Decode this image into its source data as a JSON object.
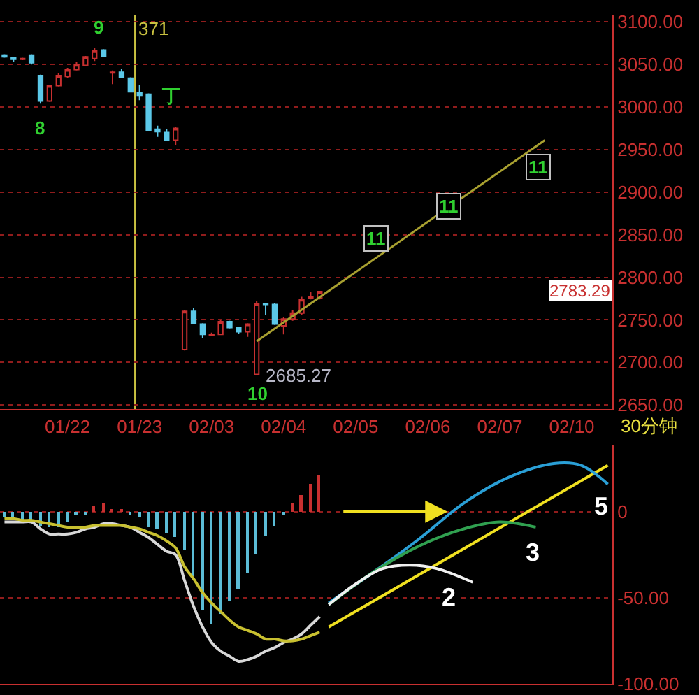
{
  "chart_data": [
    {
      "type": "candlestick",
      "categories": [
        null,
        null,
        null,
        null,
        null,
        null,
        null,
        "01/22",
        null,
        null,
        null,
        null,
        null,
        null,
        null,
        "01/23",
        null,
        null,
        null,
        null,
        null,
        null,
        null,
        "02/03",
        null,
        null,
        null,
        null,
        null,
        null,
        null,
        "02/04",
        null,
        null,
        null,
        null,
        null,
        null,
        null,
        "02/05",
        null,
        null,
        null,
        null,
        null,
        null,
        null,
        "02/06",
        null,
        null,
        null,
        null,
        null,
        null,
        null,
        "02/07",
        null,
        null,
        null,
        null,
        null,
        null,
        null,
        "02/10",
        null,
        null,
        null,
        null
      ],
      "ohlc": [
        [
          3061,
          3062,
          3058,
          3059
        ],
        [
          3058,
          3058,
          3053,
          3056
        ],
        [
          3056,
          3058,
          3055,
          3057
        ],
        [
          3061,
          3062,
          3050,
          3052
        ],
        [
          3037,
          3038,
          3004,
          3007
        ],
        [
          3007,
          3026,
          3006,
          3025
        ],
        [
          3025,
          3040,
          3024,
          3037
        ],
        [
          3036,
          3046,
          3034,
          3044
        ],
        [
          3044,
          3053,
          3043,
          3050
        ],
        [
          3049,
          3060,
          3048,
          3059
        ],
        [
          3057,
          3069,
          3054,
          3066
        ],
        [
          3067,
          3068,
          3059,
          3060
        ],
        [
          3040,
          3043,
          3027,
          3041
        ],
        [
          3041,
          3045,
          3034,
          3035
        ],
        [
          3034,
          3035,
          3017,
          3018
        ],
        [
          3017,
          3026,
          3008,
          3013
        ],
        [
          3015,
          3016,
          2972,
          2973
        ],
        [
          2974,
          2978,
          2965,
          2971
        ],
        [
          2970,
          2974,
          2960,
          2961
        ],
        [
          2961,
          2977,
          2955,
          2975
        ],
        [
          2715,
          2761,
          2714,
          2760
        ],
        [
          2760,
          2764,
          2745,
          2746
        ],
        [
          2745,
          2746,
          2729,
          2733
        ],
        [
          2732,
          2735,
          2731,
          2733
        ],
        [
          2733,
          2750,
          2732,
          2748
        ],
        [
          2748,
          2749,
          2740,
          2741
        ],
        [
          2741,
          2742,
          2734,
          2736
        ],
        [
          2736,
          2746,
          2730,
          2745
        ],
        [
          2686,
          2772,
          2685.27,
          2769
        ],
        [
          2769,
          2770,
          2756,
          2768
        ],
        [
          2768,
          2770,
          2744,
          2745
        ],
        [
          2743,
          2753,
          2733,
          2751
        ],
        [
          2751,
          2761,
          2749,
          2758
        ],
        [
          2758,
          2777,
          2756,
          2774
        ],
        [
          2775,
          2783,
          2774,
          2777
        ],
        [
          2775,
          2784,
          2774,
          2783.29
        ],
        null,
        null,
        null,
        null,
        null,
        null,
        null,
        null,
        null,
        null,
        null,
        null,
        null,
        null,
        null,
        null,
        null,
        null,
        null,
        null,
        null,
        null,
        null,
        null,
        null,
        null,
        null,
        null,
        null,
        null,
        null,
        null
      ],
      "series": [
        {
          "type": "line",
          "color": "#a8a030",
          "values": [
            null,
            null,
            null,
            null,
            null,
            null,
            null,
            null,
            null,
            null,
            null,
            null,
            null,
            null,
            null,
            null,
            null,
            null,
            null,
            null,
            null,
            null,
            null,
            null,
            null,
            null,
            null,
            null,
            2725,
            null,
            null,
            null,
            null,
            null,
            null,
            null,
            null,
            null,
            null,
            null,
            null,
            null,
            null,
            null,
            null,
            null,
            null,
            null,
            null,
            null,
            null,
            null,
            null,
            null,
            null,
            null,
            null,
            null,
            null,
            null,
            2961,
            null,
            null,
            null,
            null,
            null,
            null,
            null
          ]
        }
      ],
      "ylim": [
        2645,
        3108
      ],
      "yticks": [
        {
          "value": 2650,
          "label": "2650.00"
        },
        {
          "value": 2700,
          "label": "2700.00"
        },
        {
          "value": 2750,
          "label": "2750.00"
        },
        {
          "value": 2800,
          "label": "2800.00"
        },
        {
          "value": 2850,
          "label": "2850.00"
        },
        {
          "value": 2900,
          "label": "2900.00"
        },
        {
          "value": 2950,
          "label": "2950.00"
        },
        {
          "value": 3000,
          "label": "3000.00"
        },
        {
          "value": 3050,
          "label": "3050.00"
        },
        {
          "value": 3100,
          "label": "3100.00"
        }
      ],
      "grid": "y",
      "annotations": [
        "8",
        "9",
        "丁",
        "10",
        "2685.27",
        "11",
        "11",
        "11",
        "2783.29",
        "30分钟",
        "371"
      ]
    },
    {
      "type": "bar",
      "categories": [
        null,
        null,
        null,
        null,
        null,
        null,
        null,
        null,
        null,
        null,
        null,
        null,
        null,
        null,
        null,
        null,
        null,
        null,
        null,
        null,
        null,
        null,
        null,
        null,
        null,
        null,
        null,
        null,
        null,
        null,
        null,
        null,
        null,
        null,
        null,
        null,
        null,
        null,
        null,
        null,
        null,
        null,
        null,
        null,
        null,
        null,
        null,
        null,
        null,
        null,
        null,
        null,
        null,
        null,
        null,
        null,
        null,
        null,
        null,
        null,
        null,
        null,
        null,
        null,
        null,
        null,
        null,
        null
      ],
      "ylim": [
        -100,
        39
      ],
      "yticks": [
        0,
        {
          "value": -50,
          "label": "-50.00"
        },
        {
          "value": -100,
          "label": "-100.00"
        }
      ],
      "tick_labels": "y",
      "grid": "y",
      "series": [
        {
          "type": "bar",
          "values": [
            -3,
            -4,
            -6,
            -6,
            -8,
            -9,
            -9,
            -6,
            -2,
            -1,
            3,
            5,
            2,
            1,
            -1,
            -3,
            -9,
            -10,
            -12,
            -15,
            -22,
            -37,
            -57,
            -65,
            -59,
            -52,
            -45,
            -36,
            -24,
            -14,
            -8,
            -2,
            5,
            10,
            16,
            21,
            null,
            null,
            null,
            null,
            null,
            null,
            null,
            null,
            null,
            null,
            null,
            null,
            null,
            null,
            null,
            null,
            null,
            null,
            null,
            null,
            null,
            null,
            null,
            null,
            null,
            null,
            null,
            null,
            null,
            null,
            null,
            null
          ],
          "colors": [
            "#5bbcd6",
            "#5bbcd6",
            "#5bbcd6",
            "#5bbcd6",
            "#5bbcd6",
            "#5bbcd6",
            "#5bbcd6",
            "#5bbcd6",
            "#5bbcd6",
            "#5bbcd6",
            "#c83030",
            "#c83030",
            "#c83030",
            "#c83030",
            "#5bbcd6",
            "#5bbcd6",
            "#5bbcd6",
            "#5bbcd6",
            "#5bbcd6",
            "#5bbcd6",
            "#5bbcd6",
            "#5bbcd6",
            "#5bbcd6",
            "#5bbcd6",
            "#5bbcd6",
            "#5bbcd6",
            "#5bbcd6",
            "#5bbcd6",
            "#5bbcd6",
            "#5bbcd6",
            "#5bbcd6",
            "#5bbcd6",
            "#c83030",
            "#c83030",
            "#c83030",
            "#c83030",
            null,
            null,
            null,
            null,
            null,
            null,
            null,
            null,
            null,
            null,
            null,
            null,
            null,
            null,
            null,
            null,
            null,
            null,
            null,
            null,
            null,
            null,
            null,
            null,
            null,
            null,
            null,
            null,
            null,
            null,
            null,
            null
          ]
        },
        {
          "type": "line",
          "color": "#d8d8d8",
          "values": [
            -6,
            -6,
            -6,
            -6,
            -10,
            -13,
            -13,
            -13,
            -12,
            -10,
            -9,
            -7,
            -7,
            -8,
            -9,
            -12,
            -15,
            -19,
            -23,
            -25,
            -40,
            -55,
            -67,
            -76,
            -81,
            -84,
            -87,
            -86,
            -84,
            -81,
            -79,
            -76,
            -74,
            -71,
            -66,
            -61,
            null,
            null,
            null,
            null,
            null,
            null,
            null,
            null,
            null,
            null,
            null,
            null,
            null,
            null,
            null,
            null,
            null,
            null,
            null,
            null,
            null,
            null,
            null,
            null,
            null,
            null,
            null,
            null,
            null,
            null,
            null,
            null
          ]
        },
        {
          "type": "line",
          "color": "#c8c030",
          "values": [
            -4,
            -4,
            -5,
            -5,
            -6,
            -7,
            -8,
            -9,
            -9,
            -9,
            -8,
            -8,
            -8,
            -8,
            -9,
            -10,
            -12,
            -14,
            -17,
            -21,
            -32,
            -39,
            -47,
            -53,
            -58,
            -63,
            -67,
            -69,
            -71,
            -74,
            -74,
            -75,
            -75,
            -74,
            -72,
            -70,
            null,
            null,
            null,
            null,
            null,
            null,
            null,
            null,
            null,
            null,
            null,
            null,
            null,
            null,
            null,
            null,
            null,
            null,
            null,
            null,
            null,
            null,
            null,
            null,
            null,
            null,
            null,
            null,
            null,
            null,
            null,
            null
          ]
        },
        {
          "type": "line",
          "color": "#f0e020",
          "values": [
            null,
            null,
            null,
            null,
            null,
            null,
            null,
            null,
            null,
            null,
            null,
            null,
            null,
            null,
            null,
            null,
            null,
            null,
            null,
            null,
            null,
            null,
            null,
            null,
            null,
            null,
            null,
            null,
            null,
            null,
            null,
            null,
            null,
            null,
            null,
            null,
            -67,
            null,
            null,
            null,
            null,
            null,
            null,
            null,
            null,
            null,
            null,
            null,
            null,
            null,
            null,
            null,
            null,
            null,
            null,
            null,
            null,
            null,
            null,
            null,
            null,
            null,
            null,
            null,
            null,
            null,
            null,
            27
          ]
        },
        {
          "type": "line",
          "color": "#2a9fd6",
          "values": [
            null,
            null,
            null,
            null,
            null,
            null,
            null,
            null,
            null,
            null,
            null,
            null,
            null,
            null,
            null,
            null,
            null,
            null,
            null,
            null,
            null,
            null,
            null,
            null,
            null,
            null,
            null,
            null,
            null,
            null,
            null,
            null,
            null,
            null,
            null,
            null,
            -53,
            null,
            null,
            null,
            null,
            -35,
            null,
            null,
            null,
            null,
            -16,
            null,
            null,
            null,
            null,
            5,
            null,
            null,
            null,
            null,
            20,
            null,
            null,
            null,
            null,
            28,
            null,
            null,
            27,
            null,
            null,
            16
          ]
        },
        {
          "type": "line",
          "color": "#30a050",
          "values": [
            null,
            null,
            null,
            null,
            null,
            null,
            null,
            null,
            null,
            null,
            null,
            null,
            null,
            null,
            null,
            null,
            null,
            null,
            null,
            null,
            null,
            null,
            null,
            null,
            null,
            null,
            null,
            null,
            null,
            null,
            null,
            null,
            null,
            null,
            null,
            null,
            -54,
            null,
            null,
            null,
            null,
            -35,
            null,
            null,
            null,
            null,
            -20,
            null,
            null,
            null,
            null,
            -10,
            null,
            null,
            null,
            -6,
            null,
            null,
            null,
            -9,
            null,
            null,
            null,
            null,
            null,
            null,
            null,
            null
          ]
        },
        {
          "type": "line",
          "color": "#f0f0f0",
          "values": [
            null,
            null,
            null,
            null,
            null,
            null,
            null,
            null,
            null,
            null,
            null,
            null,
            null,
            null,
            null,
            null,
            null,
            null,
            null,
            null,
            null,
            null,
            null,
            null,
            null,
            null,
            null,
            null,
            null,
            null,
            null,
            null,
            null,
            null,
            null,
            null,
            -54,
            null,
            null,
            -42,
            null,
            null,
            -33,
            null,
            null,
            -31,
            null,
            null,
            -33,
            null,
            null,
            null,
            -41,
            null,
            null,
            null,
            null,
            null,
            null,
            null,
            null,
            null,
            null,
            null,
            null,
            null,
            null,
            null
          ]
        }
      ],
      "annotations": [
        "2",
        "3",
        "5"
      ]
    }
  ]
}
